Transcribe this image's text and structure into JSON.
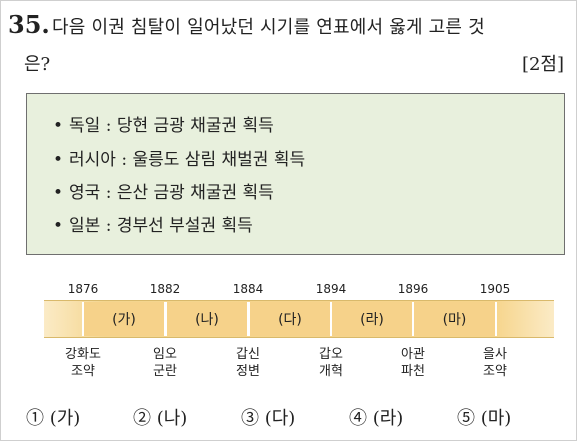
{
  "question": {
    "number": "35.",
    "text_line1": "다음 이권 침탈이 일어났던 시기를 연표에서 옳게 고른 것",
    "text_line2": "은?",
    "points": "[2점]"
  },
  "info_box": {
    "items": [
      {
        "bullet": "•",
        "text": "독일 : 당현 금광 채굴권 획득"
      },
      {
        "bullet": "•",
        "text": "러시아 : 울릉도 삼림 채벌권 획득"
      },
      {
        "bullet": "•",
        "text": "영국 : 은산 금광 채굴권 획득"
      },
      {
        "bullet": "•",
        "text": "일본 : 경부선 부설권 획득"
      }
    ]
  },
  "timeline": {
    "years": [
      "1876",
      "1882",
      "1884",
      "1894",
      "1896",
      "1905"
    ],
    "segments": [
      "(가)",
      "(나)",
      "(다)",
      "(라)",
      "(마)"
    ],
    "events": [
      {
        "line1": "강화도",
        "line2": "조약"
      },
      {
        "line1": "임오",
        "line2": "군란"
      },
      {
        "line1": "갑신",
        "line2": "정변"
      },
      {
        "line1": "갑오",
        "line2": "개혁"
      },
      {
        "line1": "아관",
        "line2": "파천"
      },
      {
        "line1": "을사",
        "line2": "조약"
      }
    ]
  },
  "choices": [
    "① (가)",
    "② (나)",
    "③ (다)",
    "④ (라)",
    "⑤ (마)"
  ]
}
